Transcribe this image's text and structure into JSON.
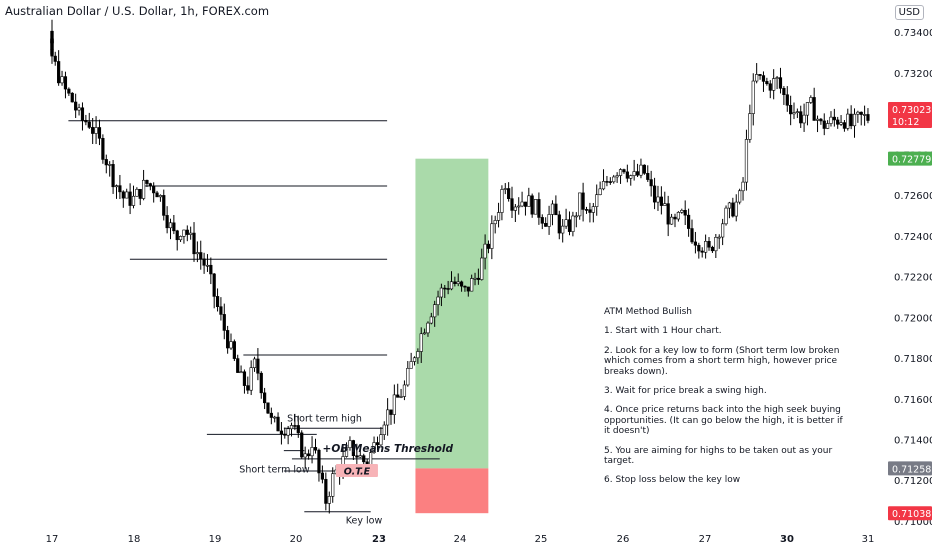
{
  "header": {
    "title": "Australian Dollar / U.S. Dollar, 1h, FOREX.com",
    "currency": "USD"
  },
  "colors": {
    "up": "#ffffff",
    "down": "#000000",
    "wick": "#000000",
    "tp_zone": "#a5d8a5",
    "sl_zone": "#fb8081",
    "ote": "#f7b3b7",
    "last_price": "#f23645",
    "green_label": "#4caf50",
    "gray_label": "#787b86"
  },
  "notes": {
    "title": "ATM Method Bullish",
    "steps": [
      "1. Start with 1 Hour chart.",
      "2. Look for a key low to form (Short term low broken which comes from a short term high, however price breaks down).",
      "3. Wait for price break a swing high.",
      "4. Once price returns back into the high seek buying opportunities. (It can go below the high, it is better if it doesn't)",
      "5. You are aiming for highs to be taken out as your target.",
      "6. Stop loss below the key low"
    ]
  },
  "chart_data": {
    "type": "candlestick",
    "title": "Australian Dollar / U.S. Dollar, 1h, FOREX.com",
    "timeframe": "1h",
    "x_tick_labels": [
      "17",
      "18",
      "19",
      "20",
      "23",
      "24",
      "25",
      "26",
      "27",
      "30",
      "31"
    ],
    "y_tick_labels": [
      "0.73400",
      "0.73200",
      "0.73000",
      "0.72800",
      "0.72600",
      "0.72400",
      "0.72200",
      "0.72000",
      "0.71800",
      "0.71600",
      "0.71400",
      "0.71200",
      "0.71000"
    ],
    "ylim": [
      0.7098,
      0.7346
    ],
    "price_labels": [
      {
        "value": "0.73023",
        "extra": "10:12",
        "kind": "last"
      },
      {
        "value": "0.72779",
        "kind": "green"
      },
      {
        "value": "0.71258",
        "kind": "gray"
      },
      {
        "value": "0.71038",
        "kind": "last"
      }
    ],
    "swing_path": [
      {
        "day": 16.5,
        "price": 0.7335
      },
      {
        "day": 16.62,
        "price": 0.7332
      },
      {
        "day": 16.75,
        "price": 0.734
      },
      {
        "day": 16.88,
        "price": 0.7338
      },
      {
        "day": 16.97,
        "price": 0.7331
      },
      {
        "day": 17.05,
        "price": 0.7322
      },
      {
        "day": 17.15,
        "price": 0.7312
      },
      {
        "day": 17.25,
        "price": 0.7306
      },
      {
        "day": 17.35,
        "price": 0.7297
      },
      {
        "day": 17.45,
        "price": 0.7296
      },
      {
        "day": 17.6,
        "price": 0.7284
      },
      {
        "day": 17.75,
        "price": 0.7268
      },
      {
        "day": 17.88,
        "price": 0.7258
      },
      {
        "day": 18.0,
        "price": 0.7258
      },
      {
        "day": 18.15,
        "price": 0.7266
      },
      {
        "day": 18.3,
        "price": 0.7262
      },
      {
        "day": 18.42,
        "price": 0.7247
      },
      {
        "day": 18.52,
        "price": 0.7238
      },
      {
        "day": 18.6,
        "price": 0.7246
      },
      {
        "day": 18.72,
        "price": 0.7236
      },
      {
        "day": 18.9,
        "price": 0.7224
      },
      {
        "day": 19.05,
        "price": 0.7202
      },
      {
        "day": 19.18,
        "price": 0.7186
      },
      {
        "day": 19.3,
        "price": 0.717
      },
      {
        "day": 19.4,
        "price": 0.7166
      },
      {
        "day": 19.5,
        "price": 0.7178
      },
      {
        "day": 19.6,
        "price": 0.7162
      },
      {
        "day": 19.7,
        "price": 0.7148
      },
      {
        "day": 19.82,
        "price": 0.7146
      },
      {
        "day": 19.95,
        "price": 0.7147
      },
      {
        "day": 20.05,
        "price": 0.7137
      },
      {
        "day": 20.12,
        "price": 0.713
      },
      {
        "day": 20.2,
        "price": 0.714
      },
      {
        "day": 20.28,
        "price": 0.7122
      },
      {
        "day": 20.36,
        "price": 0.711
      },
      {
        "day": 20.45,
        "price": 0.7122
      },
      {
        "day": 20.55,
        "price": 0.7128
      },
      {
        "day": 20.65,
        "price": 0.7136
      },
      {
        "day": 20.75,
        "price": 0.7132
      },
      {
        "day": 20.85,
        "price": 0.7128
      },
      {
        "day": 20.95,
        "price": 0.7138
      },
      {
        "day": 21.05,
        "price": 0.715
      },
      {
        "day": 21.2,
        "price": 0.7158
      },
      {
        "day": 21.32,
        "price": 0.7166
      },
      {
        "day": 21.45,
        "price": 0.7184
      },
      {
        "day": 21.6,
        "price": 0.72
      },
      {
        "day": 21.75,
        "price": 0.7212
      },
      {
        "day": 21.9,
        "price": 0.7218
      },
      {
        "day": 22.05,
        "price": 0.7212
      },
      {
        "day": 22.2,
        "price": 0.722
      },
      {
        "day": 22.35,
        "price": 0.7236
      },
      {
        "day": 22.48,
        "price": 0.7255
      },
      {
        "day": 22.55,
        "price": 0.7268
      },
      {
        "day": 22.65,
        "price": 0.7256
      },
      {
        "day": 22.8,
        "price": 0.7258
      },
      {
        "day": 22.92,
        "price": 0.7254
      },
      {
        "day": 23.05,
        "price": 0.7248
      },
      {
        "day": 23.15,
        "price": 0.7252
      },
      {
        "day": 23.25,
        "price": 0.7242
      },
      {
        "day": 23.38,
        "price": 0.7246
      },
      {
        "day": 23.48,
        "price": 0.7258
      },
      {
        "day": 23.58,
        "price": 0.7248
      },
      {
        "day": 23.7,
        "price": 0.726
      },
      {
        "day": 23.85,
        "price": 0.727
      },
      {
        "day": 24.0,
        "price": 0.7275
      },
      {
        "day": 24.12,
        "price": 0.7268
      },
      {
        "day": 24.25,
        "price": 0.7272
      },
      {
        "day": 24.38,
        "price": 0.7258
      },
      {
        "day": 24.5,
        "price": 0.7255
      },
      {
        "day": 24.6,
        "price": 0.7244
      },
      {
        "day": 24.72,
        "price": 0.725
      },
      {
        "day": 24.85,
        "price": 0.724
      },
      {
        "day": 24.95,
        "price": 0.7236
      },
      {
        "day": 25.05,
        "price": 0.7232
      },
      {
        "day": 25.15,
        "price": 0.7242
      },
      {
        "day": 25.25,
        "price": 0.725
      },
      {
        "day": 25.35,
        "price": 0.7254
      },
      {
        "day": 25.45,
        "price": 0.726
      },
      {
        "day": 25.55,
        "price": 0.7305
      },
      {
        "day": 25.62,
        "price": 0.7318
      },
      {
        "day": 25.75,
        "price": 0.7314
      },
      {
        "day": 25.88,
        "price": 0.7316
      },
      {
        "day": 25.97,
        "price": 0.7308
      },
      {
        "day": 26.07,
        "price": 0.7302
      },
      {
        "day": 26.18,
        "price": 0.7298
      },
      {
        "day": 26.3,
        "price": 0.7304
      },
      {
        "day": 26.42,
        "price": 0.7294
      },
      {
        "day": 26.55,
        "price": 0.7296
      },
      {
        "day": 26.68,
        "price": 0.7298
      },
      {
        "day": 26.8,
        "price": 0.7294
      },
      {
        "day": 26.9,
        "price": 0.7298
      },
      {
        "day": 27.0,
        "price": 0.7298
      }
    ],
    "levels": [
      {
        "from": 17.2,
        "to": 21.1,
        "price": 0.72965
      },
      {
        "from": 18.1,
        "to": 21.1,
        "price": 0.72645
      },
      {
        "from": 17.95,
        "to": 21.1,
        "price": 0.72285
      },
      {
        "from": 19.35,
        "to": 21.1,
        "price": 0.71815
      },
      {
        "from": 18.9,
        "to": 20.25,
        "price": 0.71425
      },
      {
        "from": 19.85,
        "to": 21.05,
        "price": 0.71455
      },
      {
        "from": 19.85,
        "to": 20.1,
        "price": 0.71345
      },
      {
        "from": 19.85,
        "to": 20.55,
        "price": 0.71245
      },
      {
        "from": 19.95,
        "to": 21.75,
        "price": 0.71305
      },
      {
        "from": 20.1,
        "to": 20.9,
        "price": 0.71045
      }
    ],
    "annotations": [
      {
        "text": "Short term high",
        "kind": "plain",
        "day": 19.89,
        "price": 0.71488
      },
      {
        "text": "Short term low",
        "kind": "plain",
        "day": 19.3,
        "price": 0.71238
      },
      {
        "text": "Key low",
        "kind": "plain",
        "day": 20.6,
        "price": 0.70988
      },
      {
        "text": "+OB Means Threshold",
        "kind": "bold",
        "day": 20.32,
        "price": 0.71338
      },
      {
        "text": "O.T.E",
        "kind": "badge",
        "day": 20.65,
        "price": 0.71245
      }
    ],
    "position": {
      "entry": 0.71258,
      "target": 0.72779,
      "stop": 0.71038,
      "from_day": 21.45,
      "to_day": 22.35
    }
  }
}
